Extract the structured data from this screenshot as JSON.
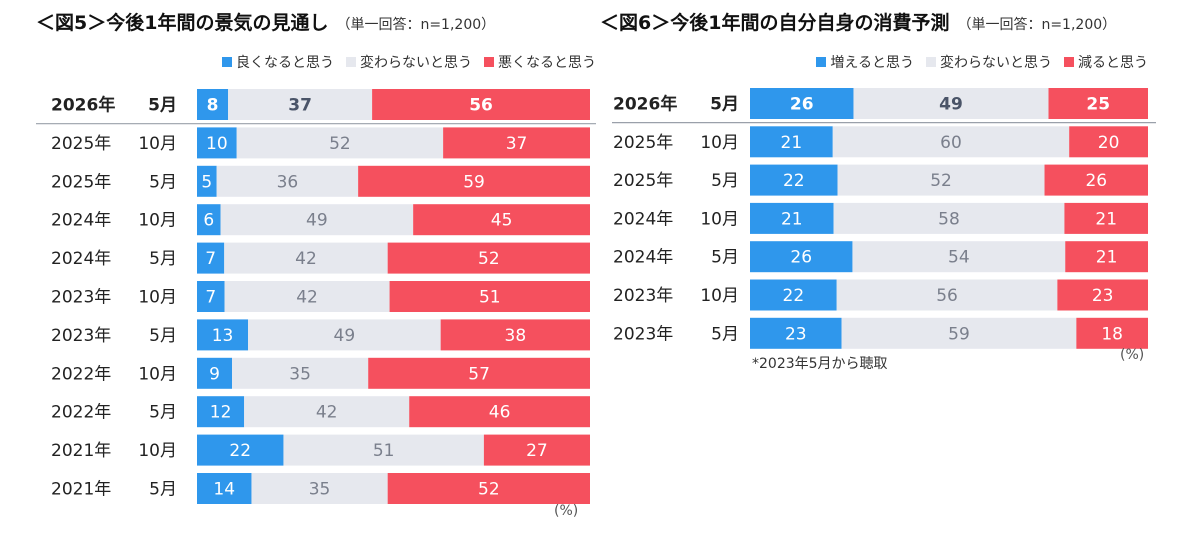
{
  "colors": {
    "better": "#2f97ec",
    "same": "#e6e8ee",
    "worse": "#f5505e",
    "same_text": "#7a7f8c",
    "highlight_same_text": "#4a5468",
    "separator": "#9aa0aa"
  },
  "panel5": {
    "title": "＜図5＞今後1年間の景気の見通し",
    "base": "（単一回答：n=1,200）",
    "legend": [
      "良くなると思う",
      "変わらないと思う",
      "悪くなると思う"
    ],
    "unit": "(%)",
    "chart_data": {
      "type": "bar",
      "orientation": "horizontal",
      "stacked": true,
      "title": "＜図5＞今後1年間の景気の見通し",
      "categories": [
        [
          "2026年",
          "5月"
        ],
        [
          "2025年",
          "10月"
        ],
        [
          "2025年",
          "5月"
        ],
        [
          "2024年",
          "10月"
        ],
        [
          "2024年",
          "5月"
        ],
        [
          "2023年",
          "10月"
        ],
        [
          "2023年",
          "5月"
        ],
        [
          "2022年",
          "10月"
        ],
        [
          "2022年",
          "5月"
        ],
        [
          "2021年",
          "10月"
        ],
        [
          "2021年",
          "5月"
        ]
      ],
      "series": [
        {
          "name": "良くなると思う",
          "values": [
            8,
            10,
            5,
            6,
            7,
            7,
            13,
            9,
            12,
            22,
            14
          ]
        },
        {
          "name": "変わらないと思う",
          "values": [
            37,
            52,
            36,
            49,
            42,
            42,
            49,
            35,
            42,
            51,
            35
          ]
        },
        {
          "name": "悪くなると思う",
          "values": [
            56,
            37,
            59,
            45,
            52,
            51,
            38,
            57,
            46,
            27,
            52
          ]
        }
      ]
    }
  },
  "panel6": {
    "title": "＜図6＞今後1年間の自分自身の消費予測",
    "base": "（単一回答：n=1,200）",
    "legend": [
      "増えると思う",
      "変わらないと思う",
      "減ると思う"
    ],
    "unit": "(%)",
    "note": "*2023年5月から聴取",
    "chart_data": {
      "type": "bar",
      "orientation": "horizontal",
      "stacked": true,
      "title": "＜図6＞今後1年間の自分自身の消費予測",
      "categories": [
        [
          "2026年",
          "5月"
        ],
        [
          "2025年",
          "10月"
        ],
        [
          "2025年",
          "5月"
        ],
        [
          "2024年",
          "10月"
        ],
        [
          "2024年",
          "5月"
        ],
        [
          "2023年",
          "10月"
        ],
        [
          "2023年",
          "5月"
        ]
      ],
      "series": [
        {
          "name": "増えると思う",
          "values": [
            26,
            21,
            22,
            21,
            26,
            22,
            23
          ]
        },
        {
          "name": "変わらないと思う",
          "values": [
            49,
            60,
            52,
            58,
            54,
            56,
            59
          ]
        },
        {
          "name": "減ると思う",
          "values": [
            25,
            20,
            26,
            21,
            21,
            23,
            18
          ]
        }
      ]
    }
  }
}
